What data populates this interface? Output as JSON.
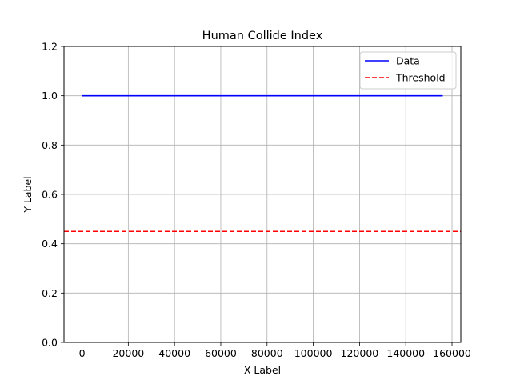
{
  "chart_data": {
    "type": "line",
    "title": "Human Collide Index",
    "xlabel": "X Label",
    "ylabel": "Y Label",
    "xlim": [
      -7800,
      163800
    ],
    "ylim": [
      0,
      1.2
    ],
    "xticks": [
      0,
      20000,
      40000,
      60000,
      80000,
      100000,
      120000,
      140000,
      160000
    ],
    "xtick_labels": [
      "0",
      "20000",
      "40000",
      "60000",
      "80000",
      "100000",
      "120000",
      "140000",
      "160000"
    ],
    "yticks": [
      0,
      0.2,
      0.4,
      0.6,
      0.8,
      1.0,
      1.2
    ],
    "ytick_labels": [
      "0.0",
      "0.2",
      "0.4",
      "0.6",
      "0.8",
      "1.0",
      "1.2"
    ],
    "grid": true,
    "legend_position": "top-right",
    "series": [
      {
        "name": "Data",
        "x": [
          0,
          156000
        ],
        "y": [
          1.0,
          1.0
        ],
        "color": "#0000ff",
        "style": "solid"
      }
    ],
    "threshold": {
      "name": "Threshold",
      "y": 0.45,
      "color": "#ff0000",
      "style": "dashed"
    }
  }
}
